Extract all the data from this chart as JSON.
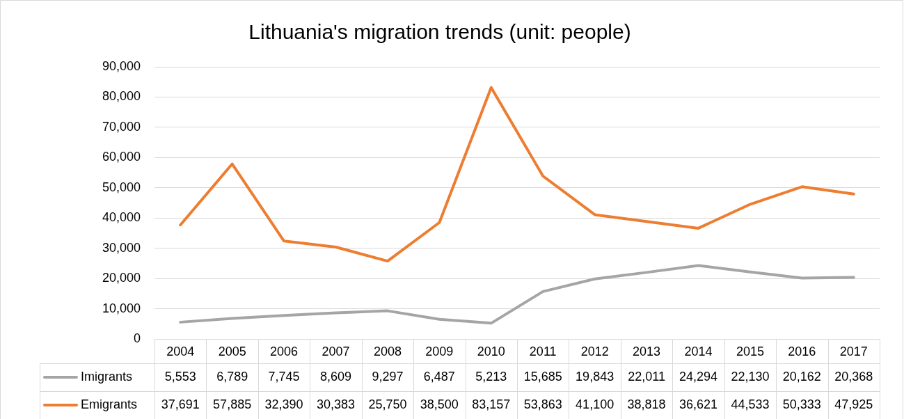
{
  "chart_data": {
    "type": "line",
    "title": "Lithuania's migration trends (unit: people)",
    "categories": [
      "2004",
      "2005",
      "2006",
      "2007",
      "2008",
      "2009",
      "2010",
      "2011",
      "2012",
      "2013",
      "2014",
      "2015",
      "2016",
      "2017"
    ],
    "series": [
      {
        "name": "Imigrants",
        "color": "#a5a5a5",
        "values": [
          5553,
          6789,
          7745,
          8609,
          9297,
          6487,
          5213,
          15685,
          19843,
          22011,
          24294,
          22130,
          20162,
          20368
        ],
        "value_labels": [
          "5,553",
          "6,789",
          "7,745",
          "8,609",
          "9,297",
          "6,487",
          "5,213",
          "15,685",
          "19,843",
          "22,011",
          "24,294",
          "22,130",
          "20,162",
          "20,368"
        ]
      },
      {
        "name": "Emigrants",
        "color": "#ed7d31",
        "values": [
          37691,
          57885,
          32390,
          30383,
          25750,
          38500,
          83157,
          53863,
          41100,
          38818,
          36621,
          44533,
          50333,
          47925
        ],
        "value_labels": [
          "37,691",
          "57,885",
          "32,390",
          "30,383",
          "25,750",
          "38,500",
          "83,157",
          "53,863",
          "41,100",
          "38,818",
          "36,621",
          "44,533",
          "50,333",
          "47,925"
        ]
      }
    ],
    "ylim": [
      0,
      90000
    ],
    "yticks": [
      0,
      {
        "value": 10000,
        "label": "10,000"
      },
      {
        "value": 20000,
        "label": "20,000"
      },
      {
        "value": 30000,
        "label": "30,000"
      },
      {
        "value": 40000,
        "label": "40,000"
      },
      {
        "value": 50000,
        "label": "50,000"
      },
      {
        "value": 60000,
        "label": "60,000"
      },
      {
        "value": 70000,
        "label": "70,000"
      },
      {
        "value": 80000,
        "label": "80,000"
      },
      {
        "value": 90000,
        "label": "90,000"
      }
    ],
    "grid": "y",
    "legend": "bottom",
    "marker": "none",
    "line_style": "solid"
  }
}
